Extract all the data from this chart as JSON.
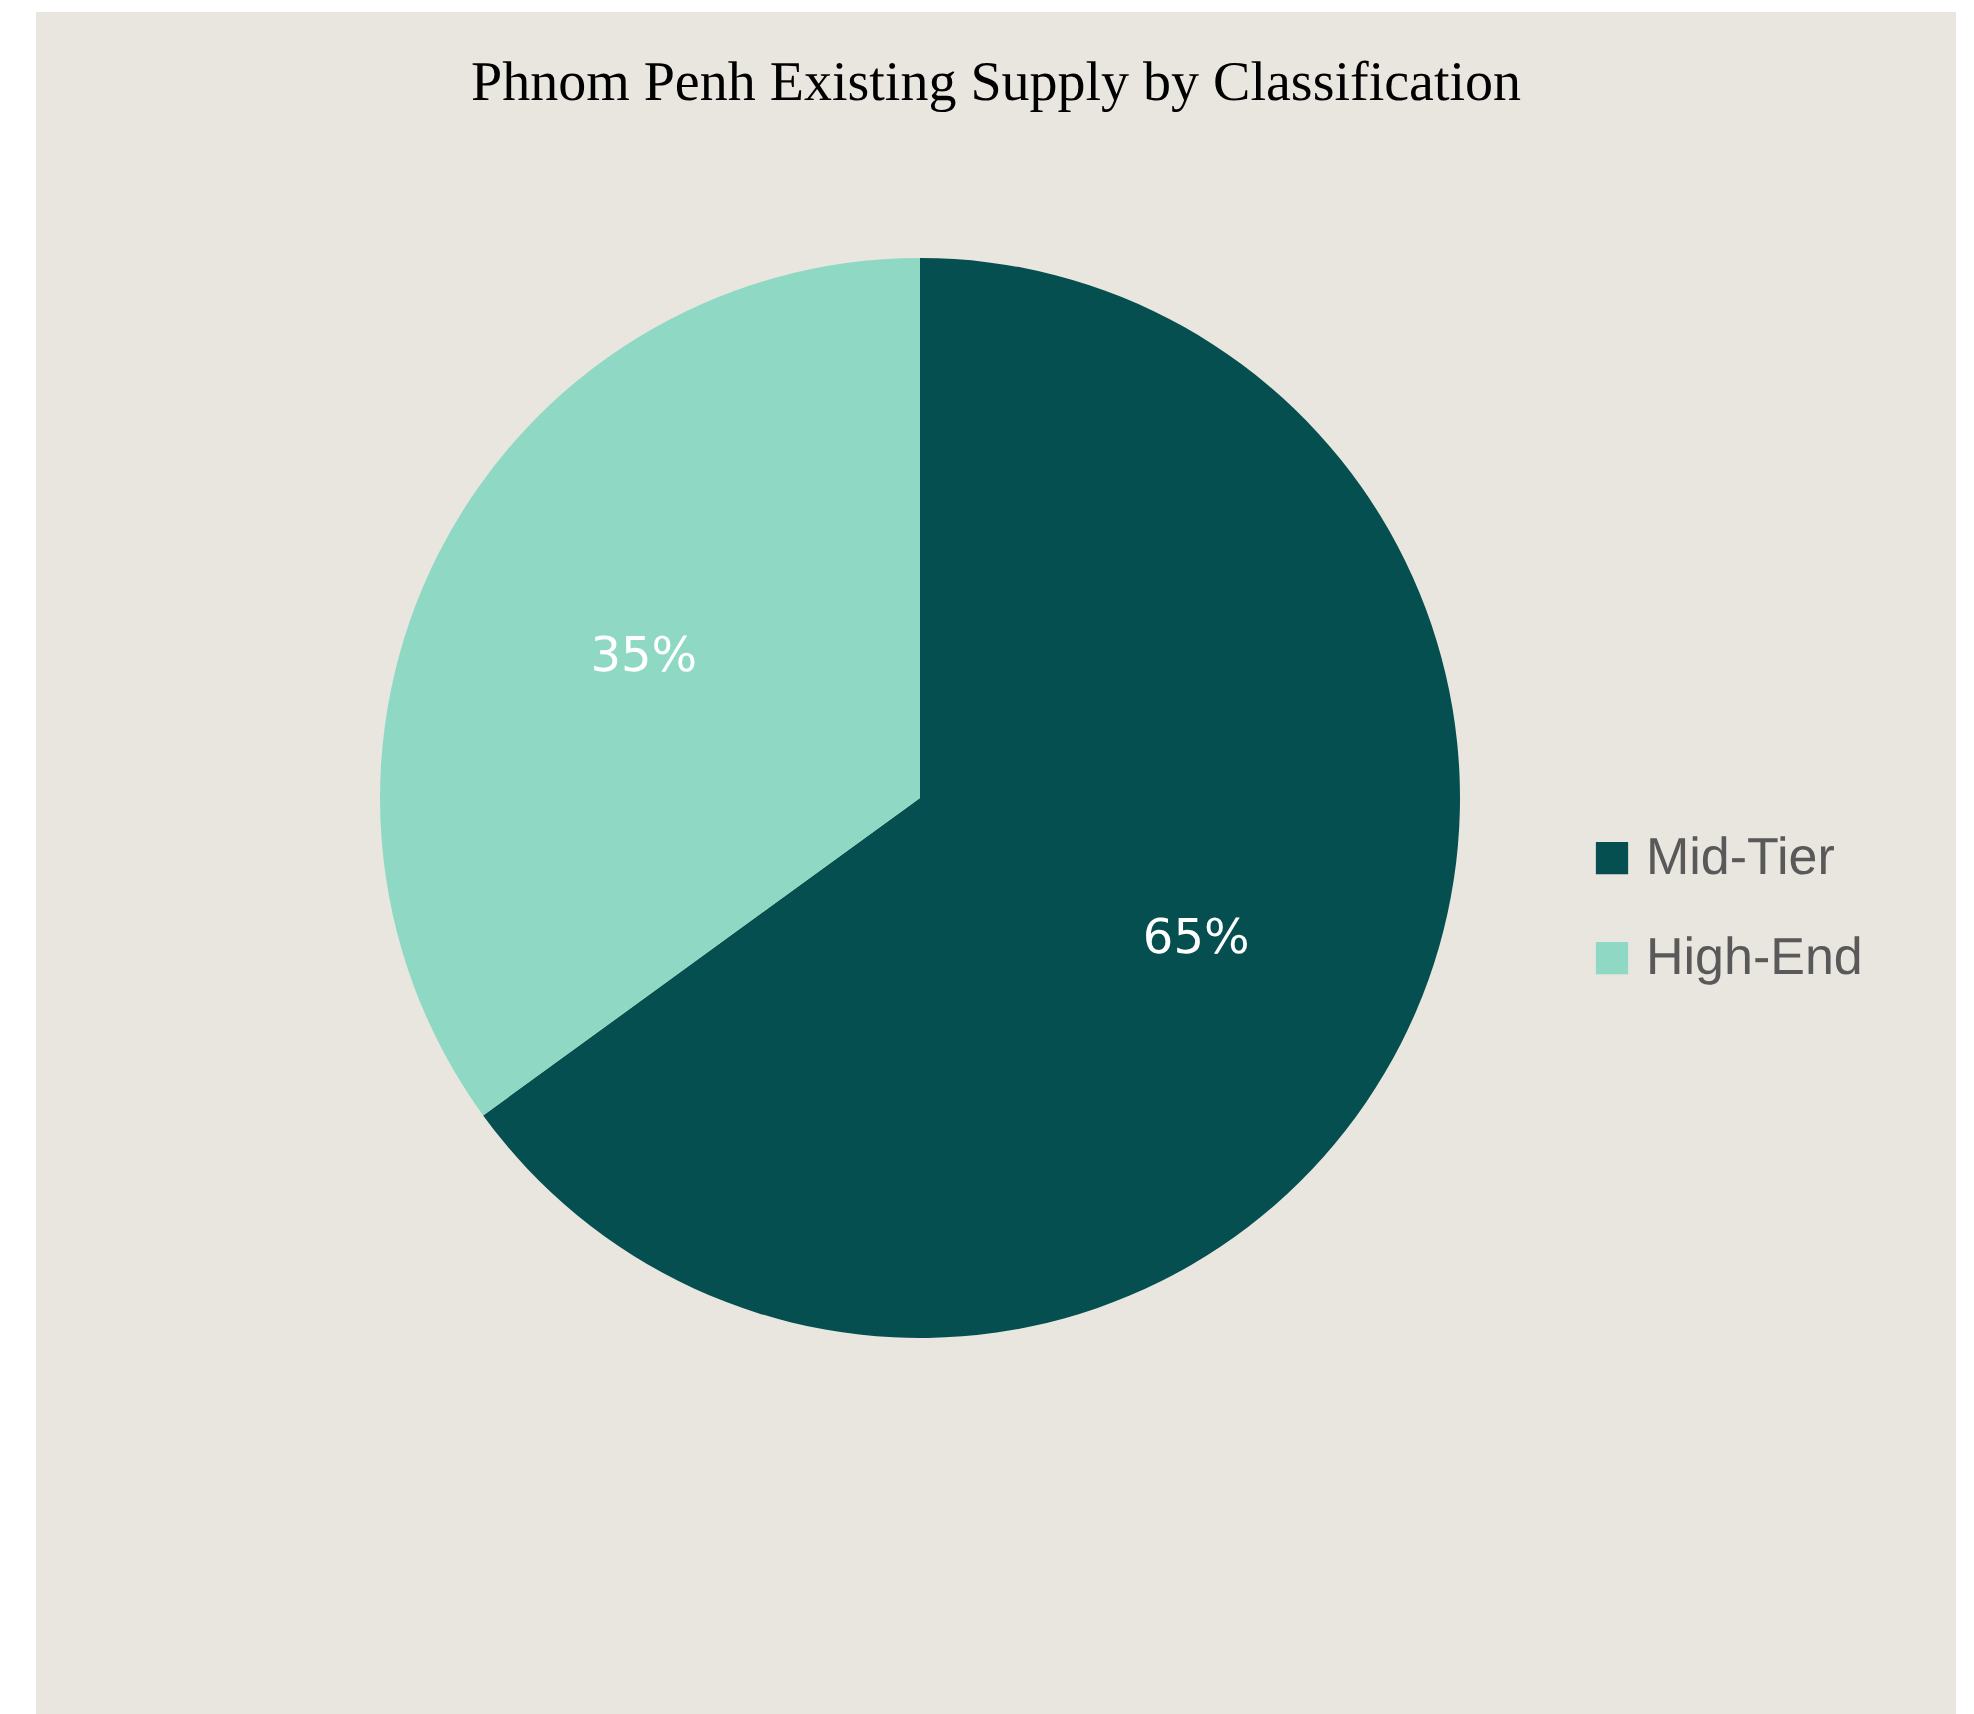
{
  "chart_data": {
    "type": "pie",
    "title": "Phnom Penh Existing Supply by Classification",
    "categories": [
      "Mid-Tier",
      "High-End"
    ],
    "values": [
      65,
      35
    ],
    "colors": [
      "#054f50",
      "#8fd9c4"
    ],
    "value_labels": [
      "65%",
      "35%"
    ],
    "legend": "right"
  }
}
